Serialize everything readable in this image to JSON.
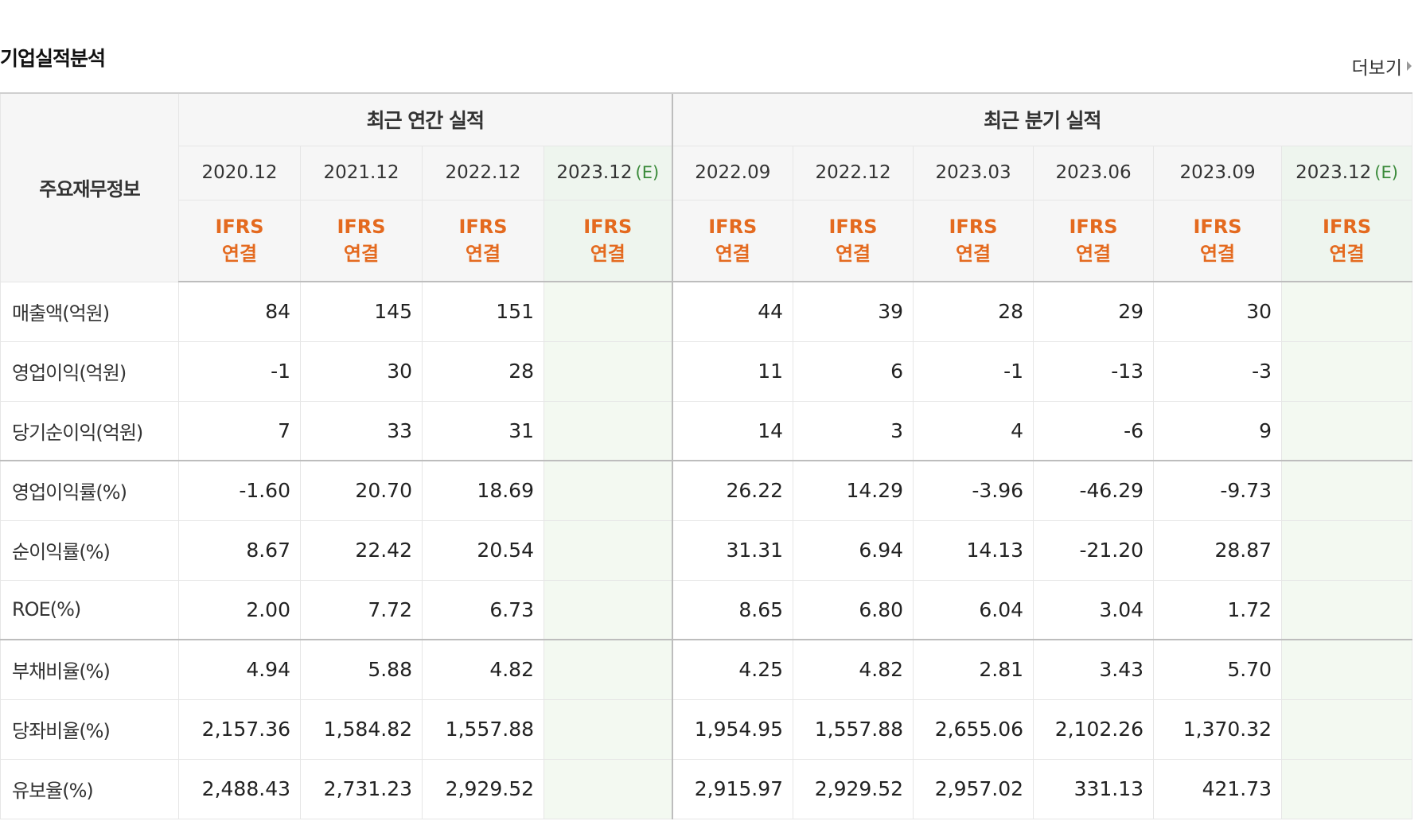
{
  "section_title": "기업실적분석",
  "more_label": "더보기",
  "header": {
    "label_head": "주요재무정보",
    "annual_group": "최근 연간 실적",
    "quarter_group": "최근 분기 실적",
    "estimate_mark": "(E)"
  },
  "periods": [
    "2020.12",
    "2021.12",
    "2022.12",
    "2023.12",
    "2022.09",
    "2022.12",
    "2023.03",
    "2023.06",
    "2023.09",
    "2023.12"
  ],
  "estimate_flags": [
    false,
    false,
    false,
    true,
    false,
    false,
    false,
    false,
    false,
    true
  ],
  "acct_line1": "IFRS",
  "acct_line2": "연결",
  "rows": [
    {
      "label": "매출액(억원)",
      "values": [
        "84",
        "145",
        "151",
        "",
        "44",
        "39",
        "28",
        "29",
        "30",
        ""
      ]
    },
    {
      "label": "영업이익(억원)",
      "values": [
        "-1",
        "30",
        "28",
        "",
        "11",
        "6",
        "-1",
        "-13",
        "-3",
        ""
      ]
    },
    {
      "label": "당기순이익(억원)",
      "values": [
        "7",
        "33",
        "31",
        "",
        "14",
        "3",
        "4",
        "-6",
        "9",
        ""
      ]
    },
    {
      "label": "영업이익률(%)",
      "values": [
        "-1.60",
        "20.70",
        "18.69",
        "",
        "26.22",
        "14.29",
        "-3.96",
        "-46.29",
        "-9.73",
        ""
      ]
    },
    {
      "label": "순이익률(%)",
      "values": [
        "8.67",
        "22.42",
        "20.54",
        "",
        "31.31",
        "6.94",
        "14.13",
        "-21.20",
        "28.87",
        ""
      ]
    },
    {
      "label": "ROE(%)",
      "values": [
        "2.00",
        "7.72",
        "6.73",
        "",
        "8.65",
        "6.80",
        "6.04",
        "3.04",
        "1.72",
        ""
      ]
    },
    {
      "label": "부채비율(%)",
      "values": [
        "4.94",
        "5.88",
        "4.82",
        "",
        "4.25",
        "4.82",
        "2.81",
        "3.43",
        "5.70",
        ""
      ]
    },
    {
      "label": "당좌비율(%)",
      "values": [
        "2,157.36",
        "1,584.82",
        "1,557.88",
        "",
        "1,954.95",
        "1,557.88",
        "2,655.06",
        "2,102.26",
        "1,370.32",
        ""
      ]
    },
    {
      "label": "유보율(%)",
      "values": [
        "2,488.43",
        "2,731.23",
        "2,929.52",
        "",
        "2,915.97",
        "2,929.52",
        "2,957.02",
        "331.13",
        "421.73",
        ""
      ]
    }
  ],
  "colors": {
    "negative": "#d42a1d",
    "accounting": "#e46a1f",
    "estimate_mark": "#3a8a3a",
    "estimate_bg": "#f3f9f1"
  }
}
